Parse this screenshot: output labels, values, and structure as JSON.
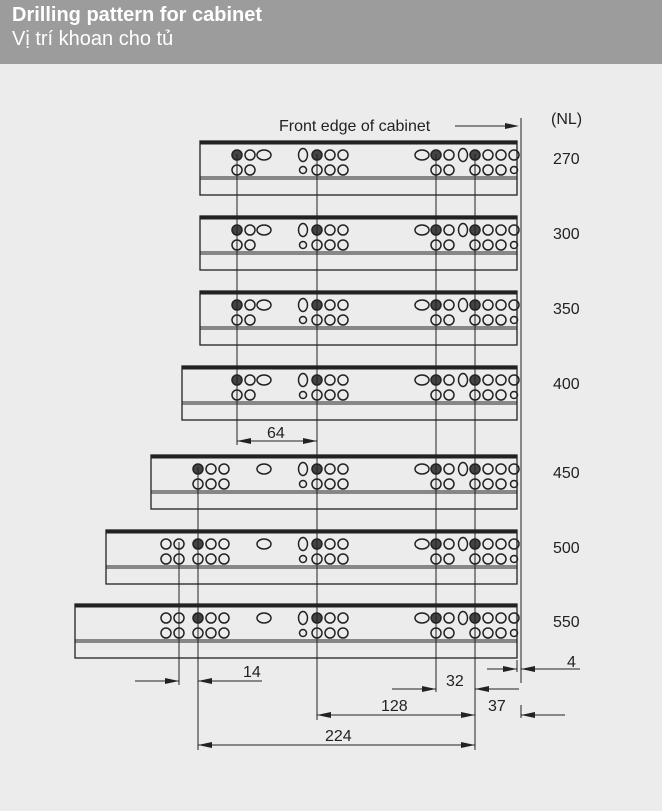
{
  "header": {
    "title": "Drilling pattern for cabinet",
    "subtitle": "Vị trí khoan cho tủ"
  },
  "diagram": {
    "front_edge_label": "Front edge of cabinet",
    "unit_label": "(NL)",
    "rails": [
      {
        "nl": "270",
        "holes": "short"
      },
      {
        "nl": "300",
        "holes": "short"
      },
      {
        "nl": "350",
        "holes": "short"
      },
      {
        "nl": "400",
        "holes": "short"
      },
      {
        "nl": "450",
        "holes": "medium"
      },
      {
        "nl": "500",
        "holes": "long"
      },
      {
        "nl": "550",
        "holes": "long"
      }
    ],
    "dimensions": {
      "d64": "64",
      "d14": "14",
      "d4": "4",
      "d32": "32",
      "d37": "37",
      "d128": "128",
      "d224": "224"
    },
    "line_color": "#222222"
  }
}
